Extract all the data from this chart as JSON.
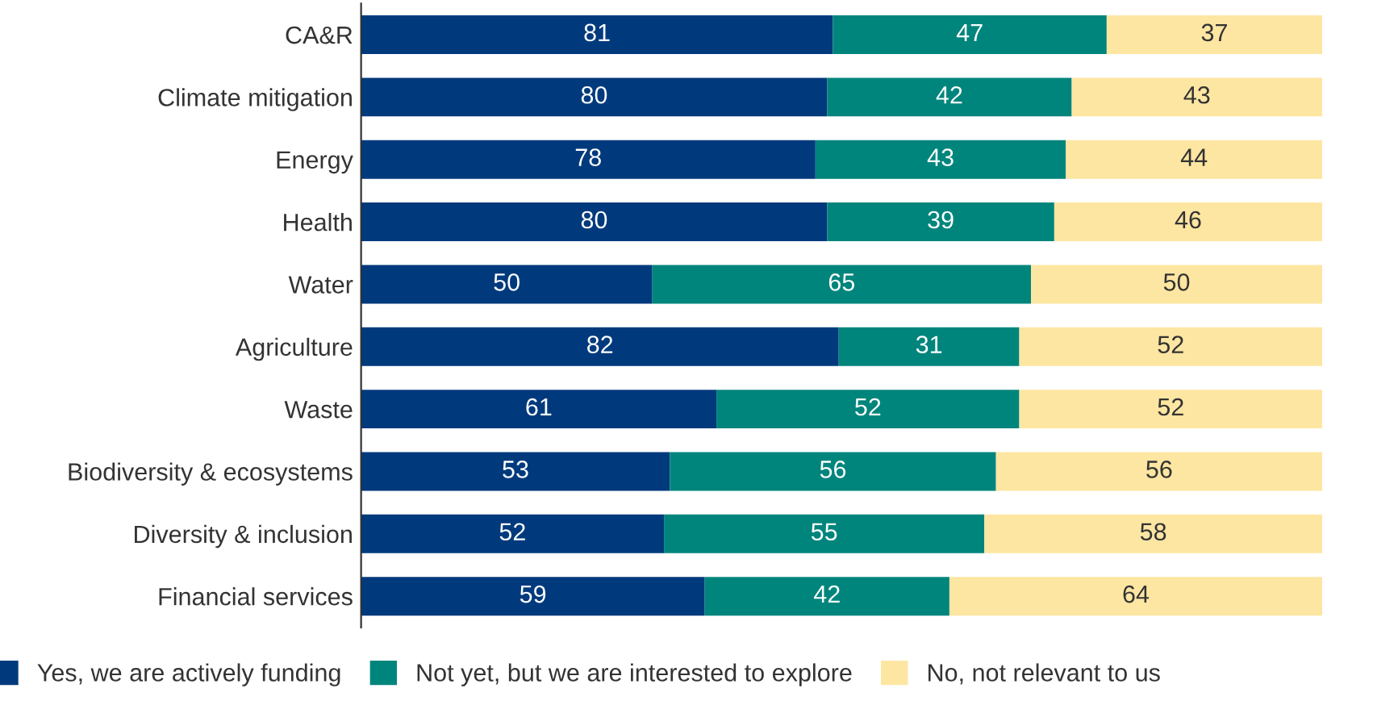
{
  "chart_data": {
    "type": "bar",
    "orientation": "horizontal",
    "stacked": true,
    "data_labels": true,
    "legend": "bottom",
    "grid": false,
    "tick_labels": "y",
    "categories": [
      "CA&R",
      "Climate mitigation",
      "Energy",
      "Health",
      "Water",
      "Agriculture",
      "Waste",
      "Biodiversity & ecosystems",
      "Diversity & inclusion",
      "Financial services"
    ],
    "series": [
      {
        "name": "Yes, we are actively funding",
        "color": "#003a7d",
        "values": [
          81,
          80,
          78,
          80,
          50,
          82,
          61,
          53,
          52,
          59
        ]
      },
      {
        "name": "Not yet, but we are interested to explore",
        "color": "#00857c",
        "values": [
          47,
          42,
          43,
          39,
          65,
          31,
          52,
          56,
          55,
          42
        ]
      },
      {
        "name": "No, not relevant to us",
        "color": "#fde6a2",
        "values": [
          37,
          43,
          44,
          46,
          50,
          52,
          52,
          56,
          58,
          64
        ]
      }
    ]
  }
}
